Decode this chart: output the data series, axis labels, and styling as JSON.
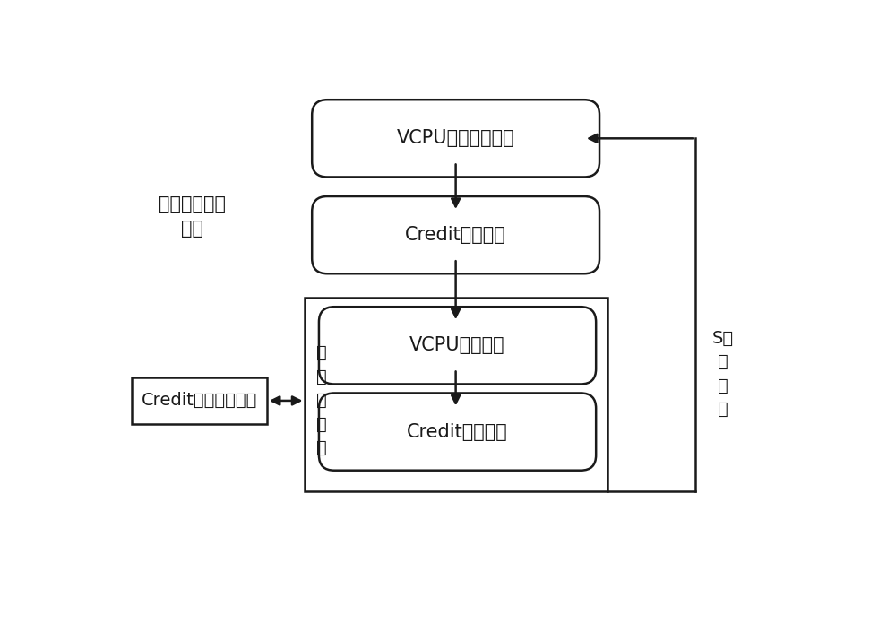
{
  "bg_color": "#ffffff",
  "border_color": "#1a1a1a",
  "text_color": "#1a1a1a",
  "box1_label": "VCPU初始映射模块",
  "box2_label": "Credit分发模块",
  "box3_label": "VCPU调度模块",
  "box4_label": "Credit消耗模块",
  "box5_label": "Credit历史统计模块",
  "label_system_line1": "同步优化调度",
  "label_system_line2": "系统",
  "label_s_slice": "S个\n时\n间\n片",
  "label_one_slice": "一\n个\n时\n间\n片",
  "font_size": 15,
  "font_size_label": 14
}
